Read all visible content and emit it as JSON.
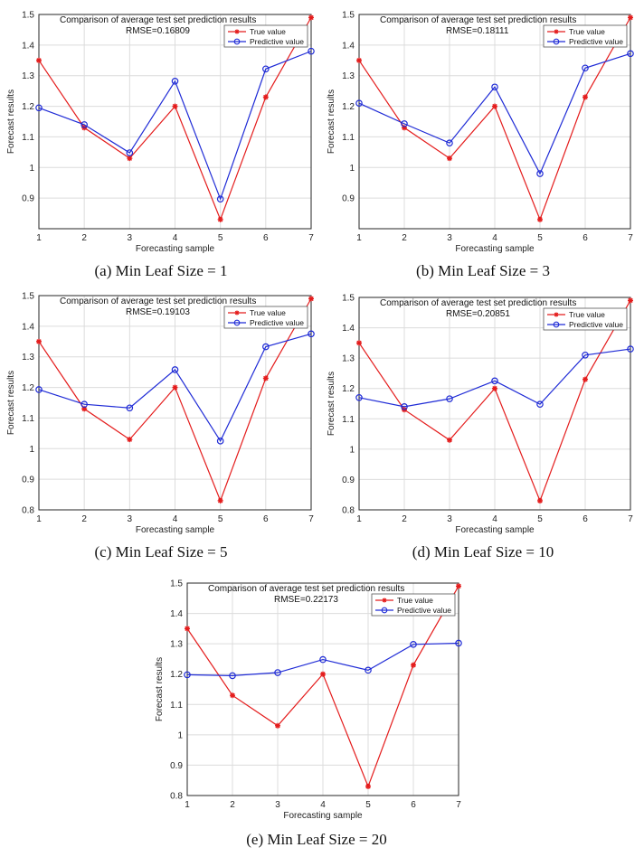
{
  "figure": {
    "colors": {
      "true": "#e41c1c",
      "pred": "#1f2bd6",
      "axis": "#262626",
      "grid": "#dcdcdc"
    }
  },
  "chart_data": [
    {
      "type": "line",
      "caption": "(a) Min Leaf Size = 1",
      "title": "Comparison of average test set prediction results",
      "rmse": "RMSE=0.16809",
      "xlabel": "Forecasting sample",
      "ylabel": "Forecast results",
      "xlim": [
        1,
        7
      ],
      "ylim": [
        0.8,
        1.5
      ],
      "yticks": [
        "0.8",
        "0.9",
        "1",
        "1.1",
        "1.2",
        "1.3",
        "1.4",
        "1.5"
      ],
      "show_first_ytick": false,
      "x": [
        1,
        2,
        3,
        4,
        5,
        6,
        7
      ],
      "series": [
        {
          "name": "True value",
          "marker": "star",
          "values": [
            1.35,
            1.13,
            1.03,
            1.2,
            0.83,
            1.23,
            1.49
          ]
        },
        {
          "name": "Predictive value",
          "marker": "circle",
          "values": [
            1.195,
            1.14,
            1.048,
            1.282,
            0.897,
            1.322,
            1.38
          ]
        }
      ]
    },
    {
      "type": "line",
      "caption": "(b) Min Leaf Size = 3",
      "title": "Comparison of average test set prediction results",
      "rmse": "RMSE=0.18111",
      "xlabel": "Forecasting sample",
      "ylabel": "Forecast results",
      "xlim": [
        1,
        7
      ],
      "ylim": [
        0.8,
        1.5
      ],
      "yticks": [
        "0.8",
        "0.9",
        "1",
        "1.1",
        "1.2",
        "1.3",
        "1.4",
        "1.5"
      ],
      "show_first_ytick": false,
      "x": [
        1,
        2,
        3,
        4,
        5,
        6,
        7
      ],
      "series": [
        {
          "name": "True value",
          "marker": "star",
          "values": [
            1.35,
            1.13,
            1.03,
            1.2,
            0.83,
            1.23,
            1.49
          ]
        },
        {
          "name": "Predictive value",
          "marker": "circle",
          "values": [
            1.21,
            1.143,
            1.08,
            1.263,
            0.98,
            1.325,
            1.372
          ]
        }
      ]
    },
    {
      "type": "line",
      "caption": "(c) Min Leaf Size = 5",
      "title": "Comparison of average test set prediction results",
      "rmse": "RMSE=0.19103",
      "xlabel": "Forecasting sample",
      "ylabel": "Forecast results",
      "xlim": [
        1,
        7
      ],
      "ylim": [
        0.8,
        1.5
      ],
      "yticks": [
        "0.8",
        "0.9",
        "1",
        "1.1",
        "1.2",
        "1.3",
        "1.4",
        "1.5"
      ],
      "show_first_ytick": true,
      "x": [
        1,
        2,
        3,
        4,
        5,
        6,
        7
      ],
      "series": [
        {
          "name": "True value",
          "marker": "star",
          "values": [
            1.35,
            1.13,
            1.03,
            1.2,
            0.83,
            1.23,
            1.49
          ]
        },
        {
          "name": "Predictive value",
          "marker": "circle",
          "values": [
            1.193,
            1.145,
            1.133,
            1.258,
            1.025,
            1.333,
            1.375
          ]
        }
      ]
    },
    {
      "type": "line",
      "caption": "(d) Min Leaf Size = 10",
      "title": "Comparison of average test set prediction results",
      "rmse": "RMSE=0.20851",
      "xlabel": "Forecasting sample",
      "ylabel": "Forecast results",
      "xlim": [
        1,
        7
      ],
      "ylim": [
        0.8,
        1.5
      ],
      "yticks": [
        "0.8",
        "0.9",
        "1",
        "1.1",
        "1.2",
        "1.3",
        "1.4",
        "1.5"
      ],
      "show_first_ytick": true,
      "x": [
        1,
        2,
        3,
        4,
        5,
        6,
        7
      ],
      "series": [
        {
          "name": "True value",
          "marker": "star",
          "values": [
            1.35,
            1.13,
            1.03,
            1.2,
            0.83,
            1.23,
            1.49
          ]
        },
        {
          "name": "Predictive value",
          "marker": "circle",
          "values": [
            1.17,
            1.14,
            1.166,
            1.225,
            1.148,
            1.31,
            1.33
          ]
        }
      ]
    },
    {
      "type": "line",
      "caption": "(e) Min Leaf Size = 20",
      "title": "Comparison of average test set prediction results",
      "rmse": "RMSE=0.22173",
      "xlabel": "Forecasting sample",
      "ylabel": "Forecast results",
      "xlim": [
        1,
        7
      ],
      "ylim": [
        0.8,
        1.5
      ],
      "yticks": [
        "0.8",
        "0.9",
        "1",
        "1.1",
        "1.2",
        "1.3",
        "1.4",
        "1.5"
      ],
      "show_first_ytick": true,
      "x": [
        1,
        2,
        3,
        4,
        5,
        6,
        7
      ],
      "series": [
        {
          "name": "True value",
          "marker": "star",
          "values": [
            1.35,
            1.13,
            1.03,
            1.2,
            0.83,
            1.23,
            1.49
          ]
        },
        {
          "name": "Predictive value",
          "marker": "circle",
          "values": [
            1.198,
            1.195,
            1.205,
            1.248,
            1.213,
            1.298,
            1.302
          ]
        }
      ]
    }
  ]
}
